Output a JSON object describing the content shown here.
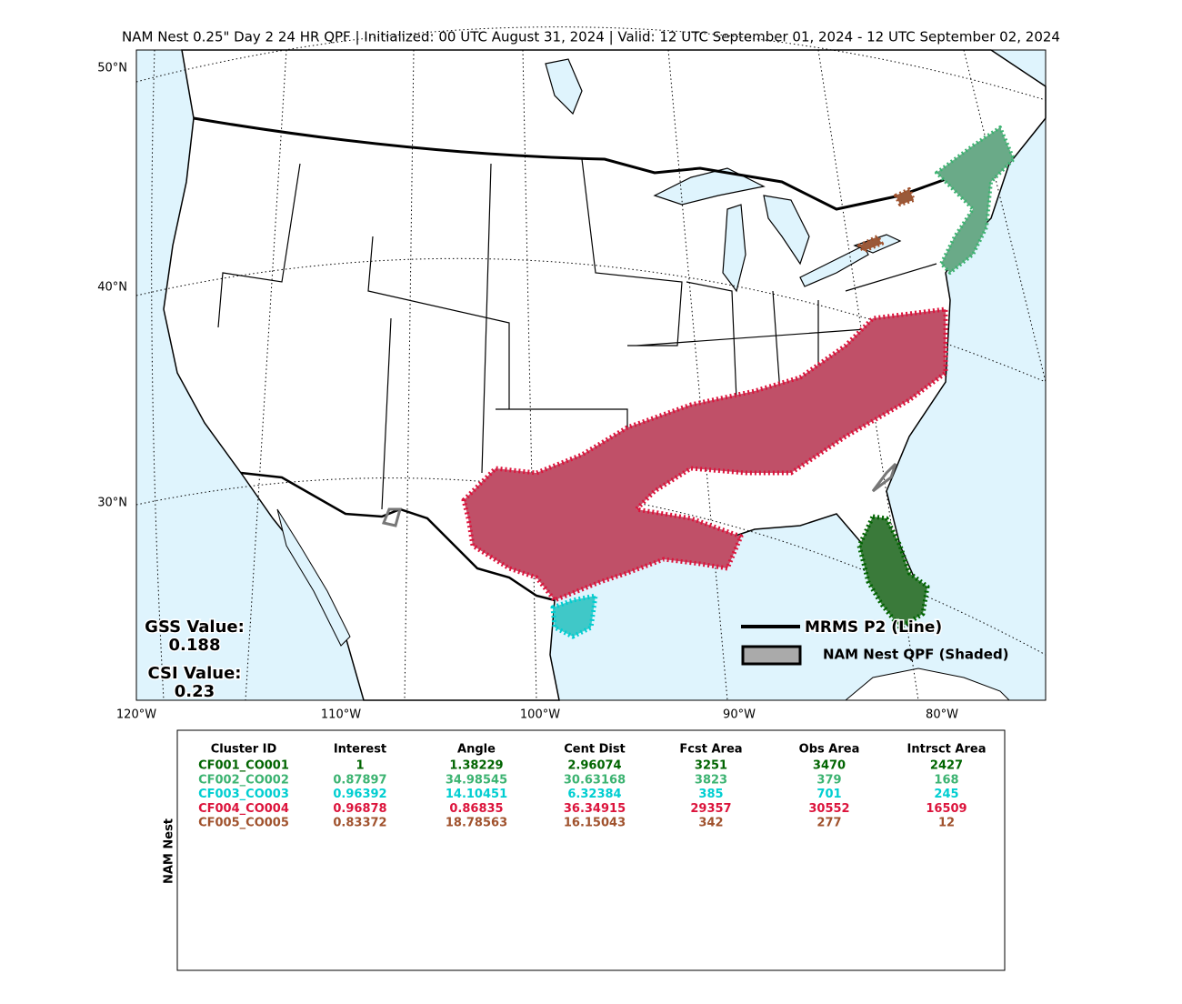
{
  "header": {
    "title": "NAM Nest 0.25\" Day 2 24 HR QPF | Initialized: 00 UTC August 31, 2024 | Valid: 12 UTC September 01, 2024 - 12 UTC September 02, 2024"
  },
  "map": {
    "lat_labels": [
      "50°N",
      "40°N",
      "30°N"
    ],
    "lon_labels": [
      "120°W",
      "110°W",
      "100°W",
      "90°W",
      "80°W"
    ],
    "scores": {
      "gss_label": "GSS Value:",
      "gss_value": "0.188",
      "csi_label": "CSI Value:",
      "csi_value": "0.23"
    },
    "legend": {
      "line": "MRMS P2 (Line)",
      "shaded": "NAM Nest QPF (Shaded)"
    }
  },
  "table": {
    "side_label": "NAM Nest",
    "headers": [
      "Cluster ID",
      "Interest",
      "Angle",
      "Cent Dist",
      "Fcst Area",
      "Obs Area",
      "Intrsct Area"
    ],
    "row_colors": [
      "#006400",
      "#3cb371",
      "#00ced1",
      "#dc143c",
      "#a0522d"
    ],
    "rows": [
      [
        "CF001_CO001",
        "1",
        "1.38229",
        "2.96074",
        "3251",
        "3470",
        "2427"
      ],
      [
        "CF002_CO002",
        "0.87897",
        "34.98545",
        "30.63168",
        "3823",
        "379",
        "168"
      ],
      [
        "CF003_CO003",
        "0.96392",
        "14.10451",
        "6.32384",
        "385",
        "701",
        "245"
      ],
      [
        "CF004_CO004",
        "0.96878",
        "0.86835",
        "36.34915",
        "29357",
        "30552",
        "16509"
      ],
      [
        "CF005_CO005",
        "0.83372",
        "18.78563",
        "16.15043",
        "342",
        "277",
        "12"
      ]
    ]
  }
}
